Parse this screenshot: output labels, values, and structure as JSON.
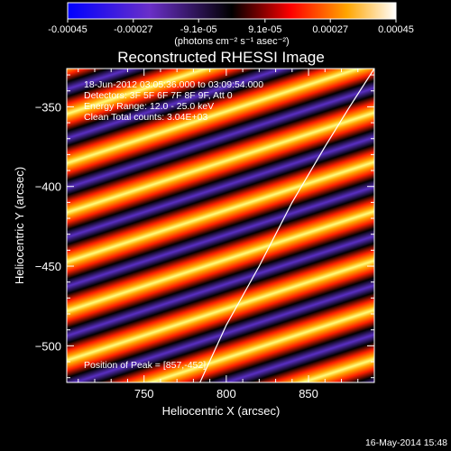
{
  "colorbar": {
    "ticks": [
      "-0.00045",
      "-0.00027",
      "-9.1e-05",
      "9.1e-05",
      "0.00027",
      "0.00045"
    ],
    "tick_values": [
      -0.00045,
      -0.00027,
      -9.1e-05,
      9.1e-05,
      0.00027,
      0.00045
    ],
    "units": "(photons cm⁻² s⁻¹ asec⁻²)"
  },
  "chart_data": {
    "type": "heatmap",
    "title": "Reconstructed RHESSI Image",
    "xlabel": "Heliocentric X (arcsec)",
    "ylabel": "Heliocentric Y (arcsec)",
    "xlim": [
      703,
      890
    ],
    "ylim": [
      -523,
      -326
    ],
    "x_ticks": [
      750,
      800,
      850
    ],
    "y_ticks": [
      -350,
      -400,
      -450,
      -500
    ],
    "x_tick_labels": [
      "750",
      "800",
      "850"
    ],
    "y_tick_labels": [
      "−350",
      "−400",
      "−450",
      "−500"
    ],
    "annotations": [
      "18-Jun-2012 03:05:36.000 to 03:09:54.000",
      "Detectors: 3F 5F 6F 7F 8F 9F, Att 0",
      "Energy Range: 12.0 - 25.0 keV",
      "Clean     Total counts: 3.04E+03"
    ],
    "peak_label": "Position of Peak = [857,-452]",
    "peak": [
      857,
      -452
    ],
    "limb_curve": [
      [
        784,
        -523
      ],
      [
        800,
        -487
      ],
      [
        820,
        -450
      ],
      [
        840,
        -410
      ],
      [
        860,
        -375
      ],
      [
        875,
        -350
      ],
      [
        890,
        -326
      ]
    ],
    "colormap": [
      "#0000ff",
      "#5a2fc4",
      "#000000",
      "#ff0000",
      "#ffa500",
      "#ffff60",
      "#ffffff"
    ]
  },
  "footer": {
    "date": "16-May-2014 15:48"
  }
}
